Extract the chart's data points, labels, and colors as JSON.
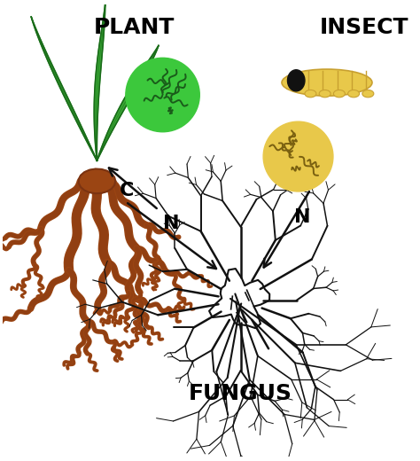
{
  "background_color": "#ffffff",
  "plant_label": "PLANT",
  "insect_label": "INSECT",
  "fungus_label": "FUNGUS",
  "label_C": "C",
  "label_N1": "N",
  "label_N2": "N",
  "green_circle_color": "#3cc83c",
  "yellow_circle_color": "#e8c84a",
  "plant_green": "#3aaa35",
  "plant_outline": "#1a6b1a",
  "root_brown": "#7B3311",
  "root_fill": "#9b4513",
  "insect_yellow": "#e8c84a",
  "insect_outline": "#c8a030",
  "insect_head_color": "#111111",
  "fungus_color": "#111111",
  "arrow_color": "#111111",
  "label_fontsize": 16,
  "figsize": [
    4.74,
    5.2
  ],
  "dpi": 100,
  "xlim": [
    0,
    10
  ],
  "ylim": [
    0,
    11
  ]
}
